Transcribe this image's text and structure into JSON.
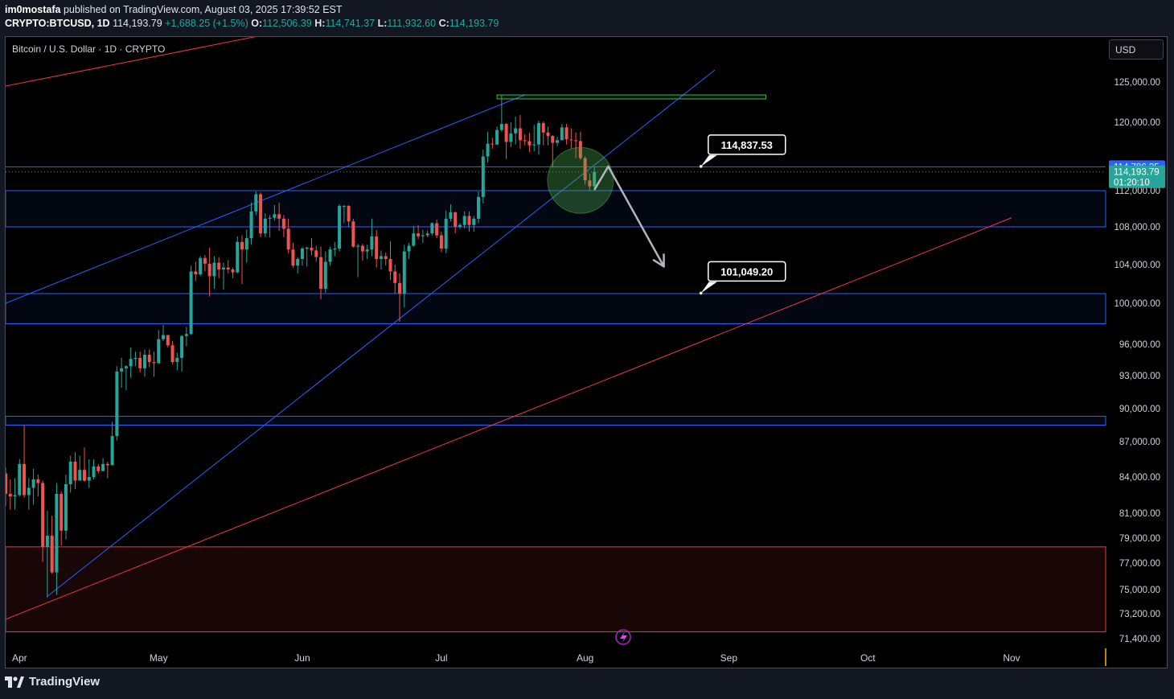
{
  "header": {
    "author": "im0mostafa",
    "published_text": "published on TradingView.com, August 03, 2025 17:39:52 EST",
    "symbol_interval": "CRYPTO:BTCUSD, 1D",
    "last": "114,193.79",
    "change": "+1,688.25 (+1.5%)",
    "o_label": "O:",
    "o": "112,506.39",
    "h_label": "H:",
    "h": "114,741.37",
    "l_label": "L:",
    "l": "111,932.60",
    "c_label": "C:",
    "c": "114,193.79"
  },
  "legend": "Bitcoin / U.S. Dollar · 1D · CRYPTO",
  "currency_button": "USD",
  "footer": {
    "brand": "TradingView"
  },
  "colors": {
    "up": "#26a69a",
    "down": "#ef5350",
    "channel_blue": "#2962ff",
    "support_red": "#f23645",
    "arrow": "#b2b5be",
    "target_box": "#4caf50"
  },
  "chart_data": {
    "type": "candlestick",
    "title": "Bitcoin / U.S. Dollar · 1D · CRYPTO",
    "x_axis_labels": [
      "Apr",
      "May",
      "Jun",
      "Jul",
      "Aug",
      "Sep",
      "Oct",
      "Nov"
    ],
    "y_ticks": [
      {
        "v": 125000,
        "label": "125,000.00"
      },
      {
        "v": 120000,
        "label": "120,000.00"
      },
      {
        "v": 112000,
        "label": "112,000.00"
      },
      {
        "v": 108000,
        "label": "108,000.00"
      },
      {
        "v": 104000,
        "label": "104,000.00"
      },
      {
        "v": 100000,
        "label": "100,000.00"
      },
      {
        "v": 96000,
        "label": "96,000.00"
      },
      {
        "v": 93000,
        "label": "93,000.00"
      },
      {
        "v": 90000,
        "label": "90,000.00"
      },
      {
        "v": 87000,
        "label": "87,000.00"
      },
      {
        "v": 84000,
        "label": "84,000.00"
      },
      {
        "v": 81000,
        "label": "81,000.00"
      },
      {
        "v": 79000,
        "label": "79,000.00"
      },
      {
        "v": 77000,
        "label": "77,000.00"
      },
      {
        "v": 75000,
        "label": "75,000.00"
      },
      {
        "v": 73200,
        "label": "73,200.00"
      },
      {
        "v": 71400,
        "label": "71,400.00"
      }
    ],
    "price_tags": [
      {
        "label": "114,786.35",
        "value": 114786.35,
        "color": "#2962ff"
      },
      {
        "label": "114,193.79",
        "sub": "01:20:10",
        "value": 114193.79,
        "color": "#26a69a"
      }
    ],
    "callouts": [
      {
        "label": "114,837.53",
        "value": 114837.53,
        "date": "2025-08-26"
      },
      {
        "label": "101,049.20",
        "value": 101049.2,
        "date": "2025-08-26"
      }
    ],
    "zones": [
      {
        "from": 108000,
        "to": 112000,
        "color": "blue"
      },
      {
        "from": 98000,
        "to": 101000,
        "color": "blue"
      },
      {
        "from": 88500,
        "to": 89300,
        "color": "blue"
      },
      {
        "from": 71900,
        "to": 78300,
        "color": "red"
      }
    ],
    "levels": [
      {
        "value": 114786.35,
        "color": "blue"
      }
    ],
    "trendlines": [
      {
        "name": "channel-top",
        "points": [
          [
            "2025-03-29",
            100000
          ],
          [
            "2025-07-19",
            123400
          ]
        ],
        "color": "blue"
      },
      {
        "name": "channel-bottom",
        "points": [
          [
            "2025-04-07",
            74500
          ],
          [
            "2025-08-29",
            126500
          ]
        ],
        "color": "blue"
      },
      {
        "name": "support-lower",
        "points": [
          [
            "2025-03-29",
            72800
          ],
          [
            "2025-11-01",
            109000
          ]
        ],
        "color": "red"
      },
      {
        "name": "support-upper",
        "points": [
          [
            "2025-03-29",
            124500
          ],
          [
            "2025-05-25",
            131000
          ]
        ],
        "color": "red"
      }
    ],
    "target_box": {
      "from_date": "2025-07-13",
      "to_date": "2025-09-09",
      "top": 123400,
      "bottom": 122900
    },
    "projection_path": [
      [
        "2025-08-03",
        112100
      ],
      [
        "2025-08-06",
        114837
      ],
      [
        "2025-08-18",
        103800
      ]
    ],
    "highlight_circle": {
      "date": "2025-07-31",
      "value": 113200
    },
    "ohlc": [
      [
        "2025-03-29",
        84300,
        84800,
        81600,
        82600
      ],
      [
        "2025-03-30",
        82600,
        83800,
        81300,
        82400
      ],
      [
        "2025-03-31",
        82400,
        83900,
        81300,
        82500
      ],
      [
        "2025-04-01",
        82500,
        85500,
        82400,
        85100
      ],
      [
        "2025-04-02",
        85100,
        88500,
        82300,
        82500
      ],
      [
        "2025-04-03",
        82500,
        83900,
        81300,
        83100
      ],
      [
        "2025-04-04",
        83100,
        84700,
        81700,
        83800
      ],
      [
        "2025-04-05",
        83800,
        84200,
        82400,
        83500
      ],
      [
        "2025-04-06",
        83500,
        83700,
        77100,
        78300
      ],
      [
        "2025-04-07",
        78300,
        81200,
        74400,
        79200
      ],
      [
        "2025-04-08",
        79200,
        80800,
        76200,
        76300
      ],
      [
        "2025-04-09",
        76300,
        83500,
        74600,
        82600
      ],
      [
        "2025-04-10",
        82600,
        82800,
        78400,
        79600
      ],
      [
        "2025-04-11",
        79600,
        84200,
        78900,
        83400
      ],
      [
        "2025-04-12",
        83400,
        85800,
        82700,
        85300
      ],
      [
        "2025-04-13",
        85300,
        86100,
        83000,
        83700
      ],
      [
        "2025-04-14",
        83700,
        85800,
        83700,
        84600
      ],
      [
        "2025-04-15",
        84600,
        86500,
        83600,
        83700
      ],
      [
        "2025-04-16",
        83700,
        85500,
        83100,
        84000
      ],
      [
        "2025-04-17",
        84000,
        85500,
        83800,
        84900
      ],
      [
        "2025-04-18",
        84900,
        85100,
        84300,
        84500
      ],
      [
        "2025-04-19",
        84500,
        85600,
        84500,
        85100
      ],
      [
        "2025-04-20",
        85100,
        85300,
        83900,
        85000
      ],
      [
        "2025-04-21",
        85000,
        88800,
        85000,
        87500
      ],
      [
        "2025-04-22",
        87500,
        93900,
        87100,
        93400
      ],
      [
        "2025-04-23",
        93400,
        94700,
        91900,
        93700
      ],
      [
        "2025-04-24",
        93700,
        94000,
        91700,
        93900
      ],
      [
        "2025-04-25",
        93900,
        95700,
        92800,
        94600
      ],
      [
        "2025-04-26",
        94600,
        95300,
        93900,
        94700
      ],
      [
        "2025-04-27",
        94700,
        95300,
        93300,
        93700
      ],
      [
        "2025-04-28",
        93700,
        95500,
        92900,
        95000
      ],
      [
        "2025-04-29",
        95000,
        95500,
        93800,
        94300
      ],
      [
        "2025-04-30",
        94300,
        95300,
        92900,
        94200
      ],
      [
        "2025-05-01",
        94200,
        97400,
        94100,
        96500
      ],
      [
        "2025-05-02",
        96500,
        97900,
        96300,
        96900
      ],
      [
        "2025-05-03",
        96900,
        96900,
        95700,
        95900
      ],
      [
        "2025-05-04",
        95900,
        96300,
        94100,
        94300
      ],
      [
        "2025-05-05",
        94300,
        95200,
        93500,
        94700
      ],
      [
        "2025-05-06",
        94700,
        96900,
        93400,
        96800
      ],
      [
        "2025-05-07",
        96800,
        97700,
        95800,
        97000
      ],
      [
        "2025-05-08",
        97000,
        103900,
        96900,
        103300
      ],
      [
        "2025-05-09",
        103300,
        104300,
        102300,
        103000
      ],
      [
        "2025-05-10",
        103000,
        104900,
        102800,
        104700
      ],
      [
        "2025-05-11",
        104700,
        105000,
        103300,
        104100
      ],
      [
        "2025-05-12",
        104100,
        105800,
        100700,
        102800
      ],
      [
        "2025-05-13",
        102800,
        104900,
        101500,
        104200
      ],
      [
        "2025-05-14",
        104200,
        104800,
        102600,
        103500
      ],
      [
        "2025-05-15",
        103500,
        104200,
        101400,
        103700
      ],
      [
        "2025-05-16",
        103700,
        104500,
        103100,
        103500
      ],
      [
        "2025-05-17",
        103500,
        103700,
        102600,
        103200
      ],
      [
        "2025-05-18",
        103200,
        107000,
        103100,
        106400
      ],
      [
        "2025-05-19",
        106400,
        107100,
        102000,
        105600
      ],
      [
        "2025-05-20",
        105600,
        107700,
        104200,
        106800
      ],
      [
        "2025-05-21",
        106800,
        110700,
        106100,
        109700
      ],
      [
        "2025-05-22",
        109700,
        111900,
        109300,
        111600
      ],
      [
        "2025-05-23",
        111600,
        111800,
        106900,
        107300
      ],
      [
        "2025-05-24",
        107300,
        109500,
        106900,
        108900
      ],
      [
        "2025-05-25",
        108900,
        109300,
        106900,
        109000
      ],
      [
        "2025-05-26",
        109000,
        110400,
        108700,
        109400
      ],
      [
        "2025-05-27",
        109400,
        110700,
        107600,
        108900
      ],
      [
        "2025-05-28",
        108900,
        109300,
        106900,
        107800
      ],
      [
        "2025-05-29",
        107800,
        108900,
        105200,
        105600
      ],
      [
        "2025-05-30",
        105600,
        106300,
        103700,
        103900
      ],
      [
        "2025-05-31",
        103900,
        104800,
        103100,
        104600
      ],
      [
        "2025-06-01",
        104600,
        105900,
        103900,
        105700
      ],
      [
        "2025-06-02",
        105700,
        105900,
        103800,
        105800
      ],
      [
        "2025-06-03",
        105800,
        106800,
        105000,
        105500
      ],
      [
        "2025-06-04",
        105500,
        106000,
        104300,
        104800
      ],
      [
        "2025-06-05",
        104800,
        105900,
        100400,
        101500
      ],
      [
        "2025-06-06",
        101500,
        105400,
        101100,
        104300
      ],
      [
        "2025-06-07",
        104300,
        105900,
        103900,
        105600
      ],
      [
        "2025-06-08",
        105600,
        106400,
        104900,
        105700
      ],
      [
        "2025-06-09",
        105700,
        110500,
        105400,
        110300
      ],
      [
        "2025-06-10",
        110300,
        110400,
        108400,
        110300
      ],
      [
        "2025-06-11",
        110300,
        110400,
        108000,
        108600
      ],
      [
        "2025-06-12",
        108600,
        108900,
        105800,
        105900
      ],
      [
        "2025-06-13",
        105900,
        106200,
        102700,
        106000
      ],
      [
        "2025-06-14",
        106000,
        106200,
        104400,
        105400
      ],
      [
        "2025-06-15",
        105400,
        106100,
        104600,
        105600
      ],
      [
        "2025-06-16",
        105600,
        108900,
        104900,
        107000
      ],
      [
        "2025-06-17",
        107000,
        107700,
        103700,
        104600
      ],
      [
        "2025-06-18",
        104600,
        105500,
        103500,
        104900
      ],
      [
        "2025-06-19",
        104900,
        105300,
        103900,
        104600
      ],
      [
        "2025-06-20",
        104600,
        106500,
        102400,
        103300
      ],
      [
        "2025-06-21",
        103300,
        104000,
        101000,
        102100
      ],
      [
        "2025-06-22",
        102100,
        103100,
        98200,
        101000
      ],
      [
        "2025-06-23",
        101000,
        106100,
        99600,
        105400
      ],
      [
        "2025-06-24",
        105400,
        106300,
        104600,
        106000
      ],
      [
        "2025-06-25",
        106000,
        108100,
        105900,
        107300
      ],
      [
        "2025-06-26",
        107300,
        108200,
        106700,
        107000
      ],
      [
        "2025-06-27",
        107000,
        107700,
        106300,
        107100
      ],
      [
        "2025-06-28",
        107100,
        107600,
        106900,
        107300
      ],
      [
        "2025-06-29",
        107300,
        108500,
        107100,
        108400
      ],
      [
        "2025-06-30",
        108400,
        108800,
        106800,
        107100
      ],
      [
        "2025-07-01",
        107100,
        107500,
        105300,
        105700
      ],
      [
        "2025-07-02",
        105700,
        109800,
        105200,
        108900
      ],
      [
        "2025-07-03",
        108900,
        110500,
        108600,
        109600
      ],
      [
        "2025-07-04",
        109600,
        109700,
        107300,
        108000
      ],
      [
        "2025-07-05",
        108000,
        108400,
        107800,
        108200
      ],
      [
        "2025-07-06",
        108200,
        109700,
        107800,
        109200
      ],
      [
        "2025-07-07",
        109200,
        109700,
        107500,
        108200
      ],
      [
        "2025-07-08",
        108200,
        109200,
        107500,
        108900
      ],
      [
        "2025-07-09",
        108900,
        111900,
        108400,
        111300
      ],
      [
        "2025-07-10",
        111300,
        116800,
        110600,
        116000
      ],
      [
        "2025-07-11",
        116000,
        118900,
        115300,
        117500
      ],
      [
        "2025-07-12",
        117500,
        118200,
        116900,
        117400
      ],
      [
        "2025-07-13",
        117400,
        119500,
        117300,
        119100
      ],
      [
        "2025-07-14",
        119100,
        123400,
        118900,
        119800
      ],
      [
        "2025-07-15",
        119800,
        119900,
        115700,
        117700
      ],
      [
        "2025-07-16",
        117700,
        120000,
        117100,
        118700
      ],
      [
        "2025-07-17",
        118700,
        120700,
        117400,
        119300
      ],
      [
        "2025-07-18",
        119300,
        120900,
        116900,
        117900
      ],
      [
        "2025-07-19",
        117900,
        118600,
        117300,
        117800
      ],
      [
        "2025-07-20",
        117800,
        118800,
        116500,
        117300
      ],
      [
        "2025-07-21",
        117300,
        119700,
        116600,
        117400
      ],
      [
        "2025-07-22",
        117400,
        120200,
        116200,
        119900
      ],
      [
        "2025-07-23",
        119900,
        120100,
        117300,
        118800
      ],
      [
        "2025-07-24",
        118800,
        119500,
        117300,
        118400
      ],
      [
        "2025-07-25",
        118400,
        118500,
        114700,
        117600
      ],
      [
        "2025-07-26",
        117600,
        118300,
        117200,
        117900
      ],
      [
        "2025-07-27",
        117900,
        119800,
        117900,
        119400
      ],
      [
        "2025-07-28",
        119400,
        119800,
        117400,
        118000
      ],
      [
        "2025-07-29",
        118000,
        119300,
        116900,
        117900
      ],
      [
        "2025-07-30",
        117900,
        118800,
        115800,
        117800
      ],
      [
        "2025-07-31",
        117800,
        118900,
        115600,
        115800
      ],
      [
        "2025-08-01",
        115800,
        116000,
        112700,
        113200
      ],
      [
        "2025-08-02",
        113200,
        114000,
        112000,
        112500
      ],
      [
        "2025-08-03",
        112500,
        114741,
        111932,
        114193
      ]
    ]
  }
}
